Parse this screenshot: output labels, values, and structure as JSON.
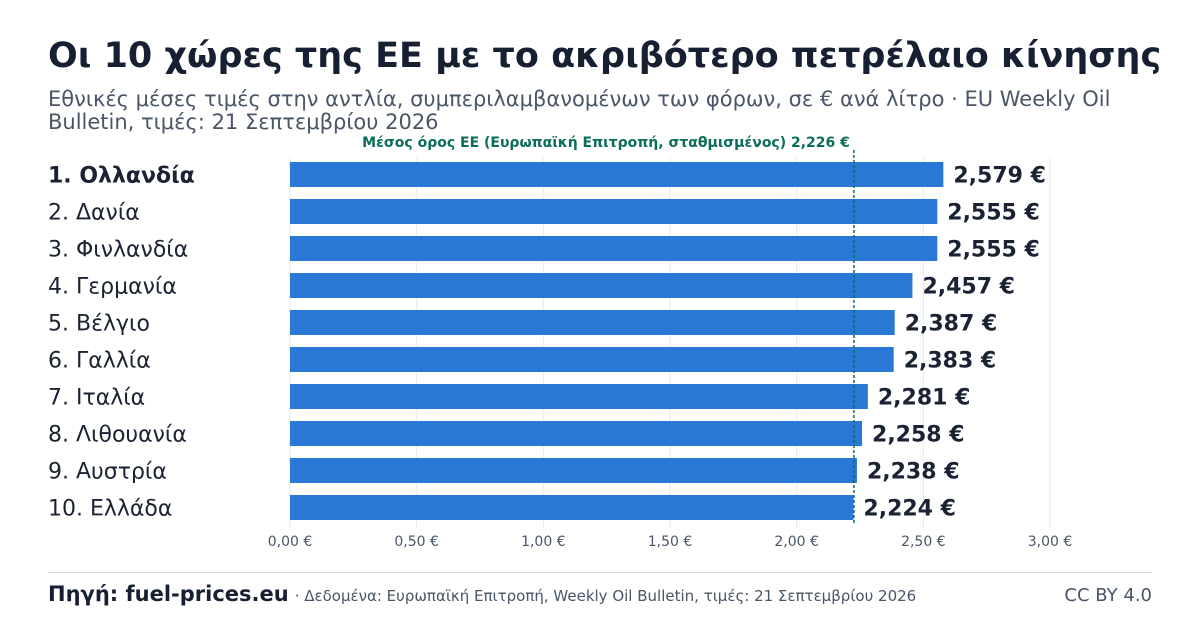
{
  "title": "Οι 10 χώρες της ΕΕ με το ακριβότερο πετρέλαιο κίνησης",
  "subtitle": "Εθνικές μέσες τιμές στην αντλία, συμπεριλαμβανομένων των φόρων, σε € ανά λίτρο · EU Weekly Oil Bulletin, τιμές: 21 Σεπτεμβρίου 2026",
  "footer": {
    "source_label": "Πηγή: fuel-prices.eu",
    "source_note": "· Δεδομένα: Ευρωπαϊκή Επιτροπή, Weekly Oil Bulletin, τιμές: 21 Σεπτεμβρίου 2026",
    "license": "CC BY 4.0"
  },
  "chart_data": {
    "type": "bar",
    "orientation": "horizontal",
    "categories": [
      "1. Ολλανδία",
      "2. Δανία",
      "3. Φινλανδία",
      "4. Γερμανία",
      "5. Βέλγιο",
      "6. Γαλλία",
      "7. Ιταλία",
      "8. Λιθουανία",
      "9. Αυστρία",
      "10. Ελλάδα"
    ],
    "values": [
      2.579,
      2.555,
      2.555,
      2.457,
      2.387,
      2.383,
      2.281,
      2.258,
      2.238,
      2.224
    ],
    "value_labels": [
      "2,579 €",
      "2,555 €",
      "2,555 €",
      "2,457 €",
      "2,387 €",
      "2,383 €",
      "2,281 €",
      "2,258 €",
      "2,238 €",
      "2,224 €"
    ],
    "xlim": [
      0,
      3.0
    ],
    "xticks": [
      0,
      0.5,
      1.0,
      1.5,
      2.0,
      2.5,
      3.0
    ],
    "xtick_labels": [
      "0,00 €",
      "0,50 €",
      "1,00 €",
      "1,50 €",
      "2,00 €",
      "2,50 €",
      "3,00 €"
    ],
    "reference_line": {
      "value": 2.226,
      "label": "Μέσος όρος ΕΕ (Ευρωπαϊκή Επιτροπή, σταθμισμένος) 2,226 €"
    },
    "grid": true,
    "colors": {
      "bar": "#2a78d6",
      "reference": "#0b6e5a",
      "grid": "#e7eaee",
      "tick": "#4a5568",
      "label": "#1a2233"
    }
  }
}
